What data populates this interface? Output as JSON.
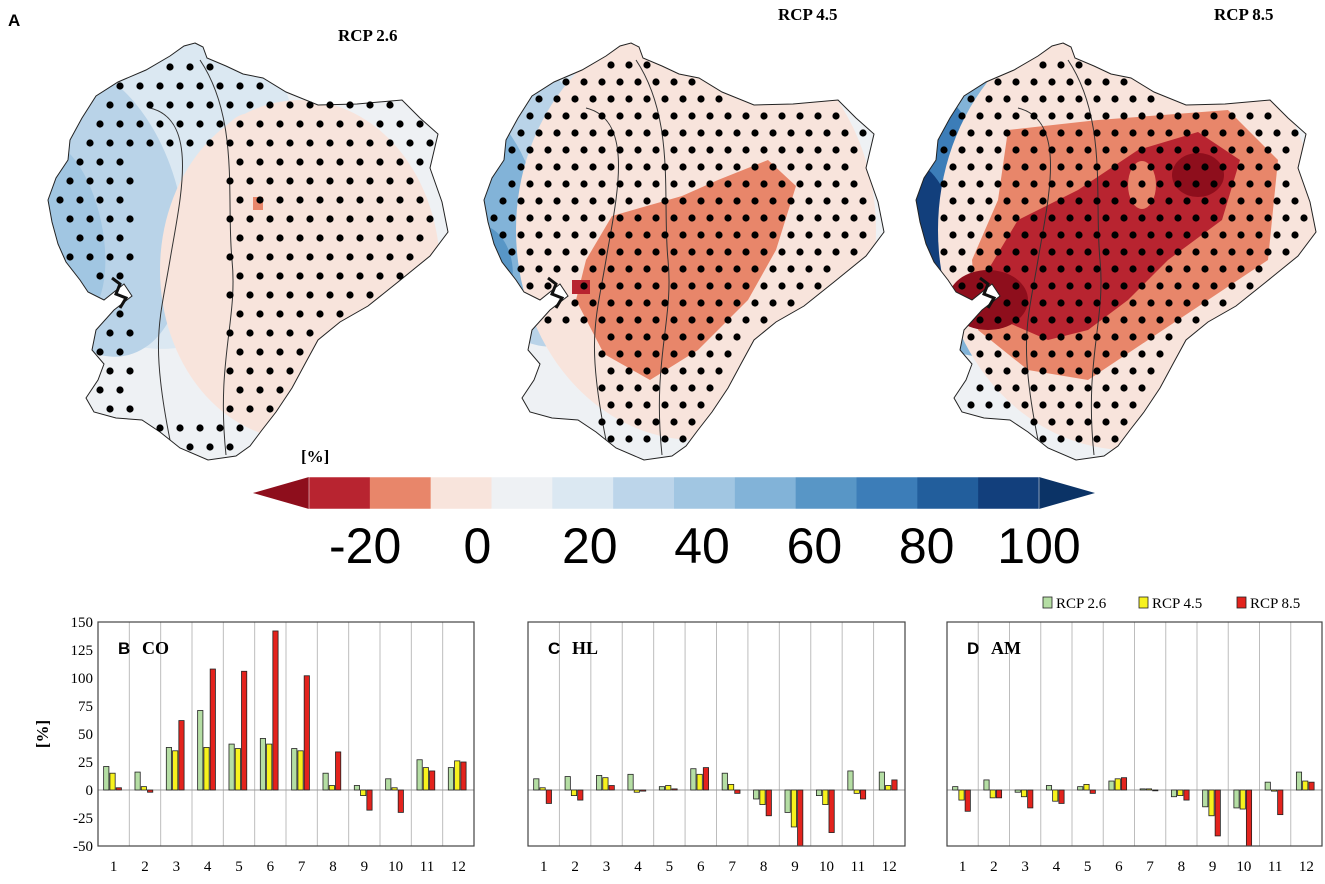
{
  "figure": {
    "panel_a_label": "A",
    "map_titles": [
      "RCP 2.6",
      "RCP 4.5",
      "RCP 8.5"
    ],
    "colorbar_unit": "[%]",
    "colorbar_tick_labels": [
      "-20",
      "0",
      "20",
      "40",
      "60",
      "80",
      "100"
    ],
    "colors": {
      "positive_light": "#b9d3e8",
      "positive_dark": "#0b3c73",
      "negative_light": "#f8e4dc",
      "negative_mid": "#e8866a",
      "negative_dark": "#b82430",
      "neutral": "#eef1f4",
      "rcp26": "#b5dea4",
      "rcp45": "#f7f21e",
      "rcp85": "#e3231d"
    }
  },
  "chart_data": [
    {
      "type": "heatmap",
      "title": "RCP 2.6",
      "panel": "A",
      "note": "Projected precipitation change map over Ecuador; dots mark significance",
      "colorbar": {
        "unit": "[%]",
        "range": [
          -30,
          110
        ],
        "step": 10,
        "ticks": [
          -20,
          0,
          20,
          40,
          60,
          80,
          100
        ],
        "extend": "both",
        "colors": [
          "#8e0e1c",
          "#b82430",
          "#e8866a",
          "#f8e4dc",
          "#eef1f4",
          "#dbe8f2",
          "#bcd5ea",
          "#a1c6e2",
          "#82b3d8",
          "#5896c6",
          "#3c7db8",
          "#225e9c",
          "#123f7c",
          "#0b3366"
        ]
      }
    },
    {
      "type": "heatmap",
      "title": "RCP 4.5",
      "panel": "A"
    },
    {
      "type": "heatmap",
      "title": "RCP 8.5",
      "panel": "A"
    },
    {
      "type": "bar",
      "panel": "B",
      "title": "CO",
      "ylabel": "[%]",
      "ylim": [
        -50,
        150
      ],
      "yticks": [
        "150",
        "125",
        "100",
        "75",
        "50",
        "25",
        "0",
        "-25",
        "-50"
      ],
      "categories": [
        "1",
        "2",
        "3",
        "4",
        "5",
        "6",
        "7",
        "8",
        "9",
        "10",
        "11",
        "12"
      ],
      "series": [
        {
          "name": "RCP 2.6",
          "values": [
            21,
            16,
            38,
            71,
            41,
            46,
            37,
            15,
            4,
            10,
            27,
            20
          ]
        },
        {
          "name": "RCP 4.5",
          "values": [
            15,
            3,
            35,
            38,
            37,
            41,
            35,
            4,
            -5,
            2,
            20,
            26
          ]
        },
        {
          "name": "RCP 8.5",
          "values": [
            2,
            -2,
            62,
            108,
            106,
            142,
            102,
            34,
            -18,
            -20,
            17,
            25
          ]
        }
      ]
    },
    {
      "type": "bar",
      "panel": "C",
      "title": "HL",
      "ylim": [
        -50,
        150
      ],
      "categories": [
        "1",
        "2",
        "3",
        "4",
        "5",
        "6",
        "7",
        "8",
        "9",
        "10",
        "11",
        "12"
      ],
      "series": [
        {
          "name": "RCP 2.6",
          "values": [
            10,
            12,
            13,
            14,
            3,
            19,
            15,
            -8,
            -20,
            -5,
            17,
            16
          ]
        },
        {
          "name": "RCP 4.5",
          "values": [
            2,
            -5,
            11,
            -2,
            4,
            14,
            5,
            -13,
            -33,
            -13,
            -3,
            4
          ]
        },
        {
          "name": "RCP 8.5",
          "values": [
            -12,
            -9,
            4,
            -1,
            1,
            20,
            -3,
            -23,
            -50,
            -38,
            -8,
            9
          ]
        }
      ]
    },
    {
      "type": "bar",
      "panel": "D",
      "title": "AM",
      "ylim": [
        -50,
        150
      ],
      "categories": [
        "1",
        "2",
        "3",
        "4",
        "5",
        "6",
        "7",
        "8",
        "9",
        "10",
        "11",
        "12"
      ],
      "series": [
        {
          "name": "RCP 2.6",
          "values": [
            3,
            9,
            -2,
            4,
            3,
            8,
            1,
            -6,
            -15,
            -16,
            7,
            16
          ]
        },
        {
          "name": "RCP 4.5",
          "values": [
            -9,
            -7,
            -6,
            -10,
            5,
            10,
            1,
            -5,
            -23,
            -17,
            -1,
            8
          ]
        },
        {
          "name": "RCP 8.5",
          "values": [
            -19,
            -7,
            -16,
            -12,
            -3,
            11,
            0,
            -9,
            -41,
            -50,
            -22,
            7
          ]
        }
      ]
    }
  ],
  "legend": [
    "RCP 2.6",
    "RCP 4.5",
    "RCP 8.5"
  ],
  "legend_position": "top-right"
}
